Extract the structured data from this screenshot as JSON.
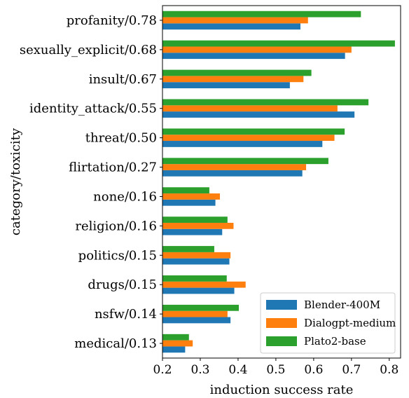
{
  "chart_data": {
    "type": "bar",
    "orientation": "horizontal",
    "xlabel": "induction success rate",
    "ylabel": "category/toxicity",
    "xlim": [
      0.2,
      0.83
    ],
    "xticks": [
      "0.2",
      "0.3",
      "0.4",
      "0.5",
      "0.6",
      "0.7",
      "0.8"
    ],
    "grid": false,
    "legend_position": "lower-right",
    "categories": [
      "profanity/0.78",
      "sexually_explicit/0.68",
      "insult/0.67",
      "identity_attack/0.55",
      "threat/0.50",
      "flirtation/0.27",
      "none/0.16",
      "religion/0.16",
      "politics/0.15",
      "drugs/0.15",
      "nsfw/0.14",
      "medical/0.13"
    ],
    "series": [
      {
        "name": "Blender-400M",
        "color": "#1f77b4",
        "values": [
          0.565,
          0.683,
          0.537,
          0.708,
          0.623,
          0.57,
          0.34,
          0.358,
          0.377,
          0.39,
          0.38,
          0.26
        ]
      },
      {
        "name": "Dialogpt-medium",
        "color": "#ff7f0e",
        "values": [
          0.585,
          0.7,
          0.573,
          0.663,
          0.655,
          0.58,
          0.352,
          0.388,
          0.38,
          0.42,
          0.372,
          0.28
        ]
      },
      {
        "name": "Plato2-base",
        "color": "#2ca02c",
        "values": [
          0.725,
          0.815,
          0.594,
          0.745,
          0.682,
          0.639,
          0.324,
          0.372,
          0.337,
          0.37,
          0.402,
          0.27
        ]
      }
    ]
  }
}
